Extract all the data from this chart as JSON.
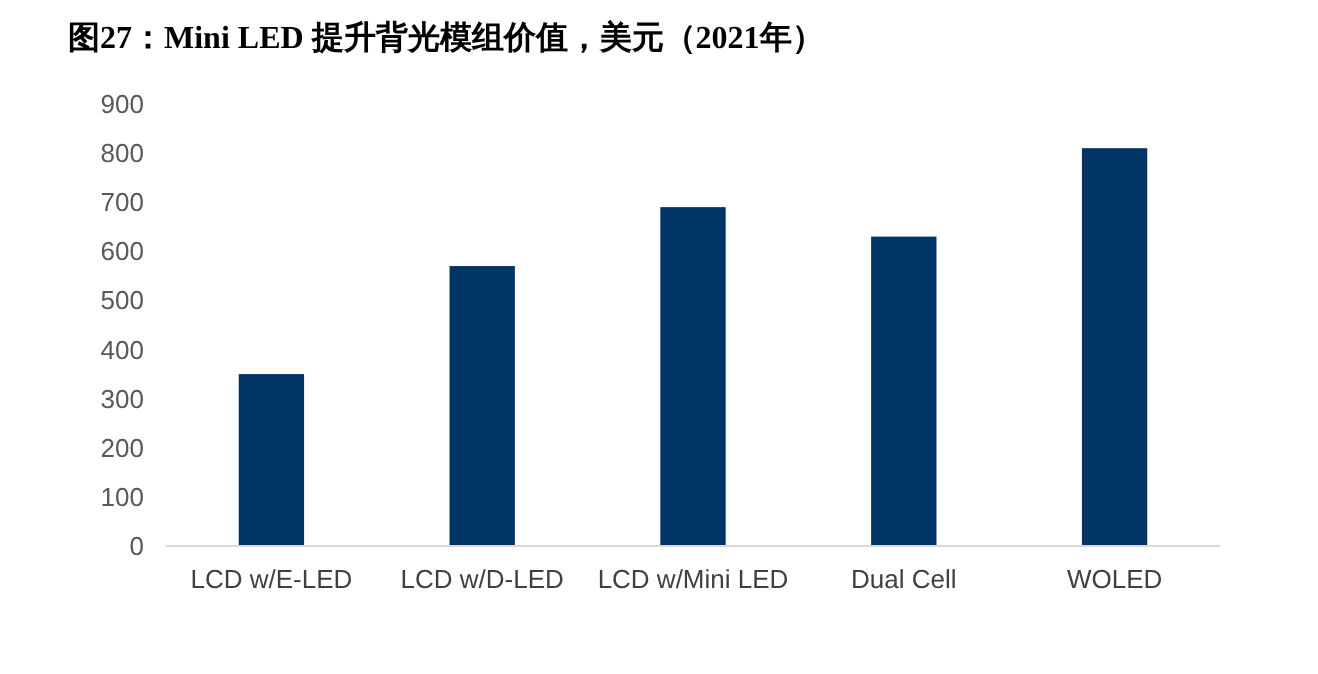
{
  "chart_data": {
    "type": "bar",
    "title": "图27：Mini LED 提升背光模组价值，美元（2021年）",
    "categories": [
      "LCD w/E-LED",
      "LCD w/D-LED",
      "LCD w/Mini LED",
      "Dual Cell",
      "WOLED"
    ],
    "values": [
      350,
      570,
      690,
      630,
      810
    ],
    "color": "#003366",
    "ylim": [
      0,
      900
    ],
    "yticks": [
      0,
      100,
      200,
      300,
      400,
      500,
      600,
      700,
      800,
      900
    ]
  }
}
